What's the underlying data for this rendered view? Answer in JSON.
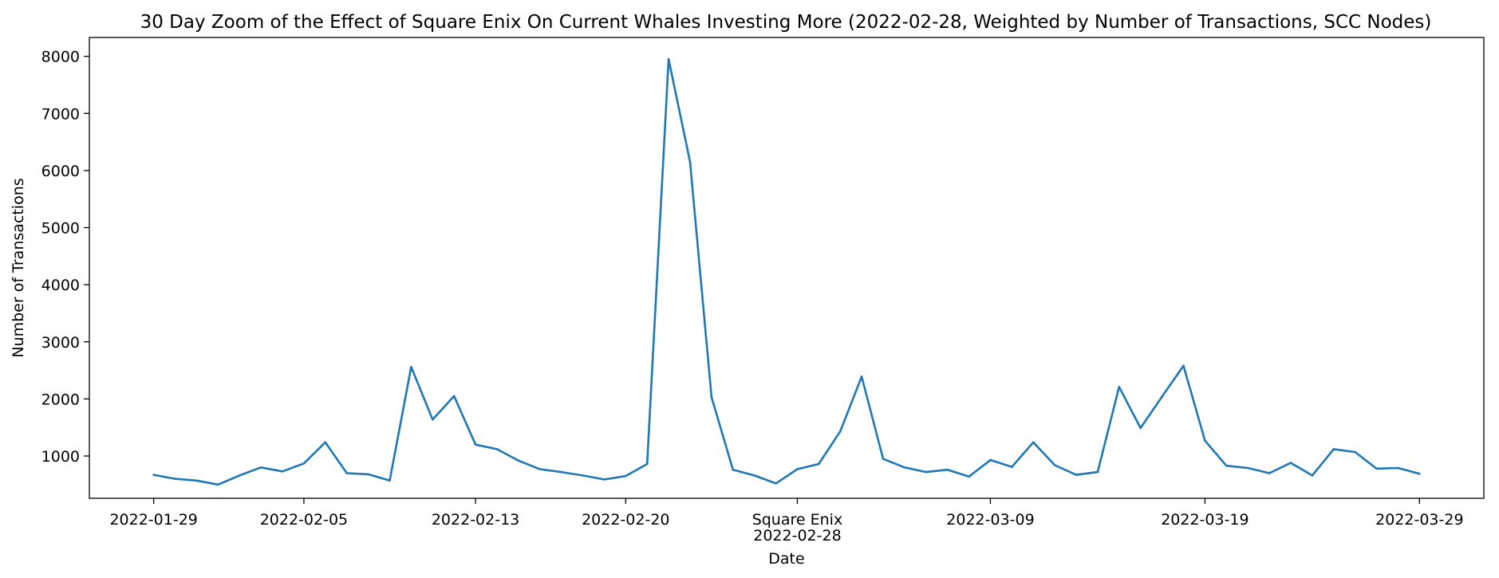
{
  "chart_data": {
    "type": "line",
    "title": "30 Day Zoom of the Effect of Square Enix On Current Whales Investing More (2022-02-28, Weighted by Number of Transactions, SCC Nodes)",
    "xlabel": "Date",
    "ylabel": "Number of Transactions",
    "xlim": [
      "2022-01-26",
      "2022-04-01"
    ],
    "ylim": [
      260,
      8330
    ],
    "yticks": [
      1000,
      2000,
      3000,
      4000,
      5000,
      6000,
      7000,
      8000
    ],
    "xticks": [
      {
        "date": "2022-01-29",
        "label": "2022-01-29"
      },
      {
        "date": "2022-02-05",
        "label": "2022-02-05"
      },
      {
        "date": "2022-02-13",
        "label": "2022-02-13"
      },
      {
        "date": "2022-02-20",
        "label": "2022-02-20"
      },
      {
        "date": "2022-02-28",
        "label": "2022-02-28"
      },
      {
        "date": "2022-03-09",
        "label": "2022-03-09"
      },
      {
        "date": "2022-03-19",
        "label": "2022-03-19"
      },
      {
        "date": "2022-03-29",
        "label": "2022-03-29"
      }
    ],
    "event": {
      "date": "2022-02-28",
      "label": "Square Enix"
    },
    "grid": false,
    "series": [
      {
        "color": "#1f77b4",
        "x": [
          "2022-01-29",
          "2022-01-30",
          "2022-01-31",
          "2022-02-01",
          "2022-02-02",
          "2022-02-03",
          "2022-02-04",
          "2022-02-05",
          "2022-02-06",
          "2022-02-07",
          "2022-02-08",
          "2022-02-09",
          "2022-02-10",
          "2022-02-11",
          "2022-02-12",
          "2022-02-13",
          "2022-02-14",
          "2022-02-15",
          "2022-02-16",
          "2022-02-17",
          "2022-02-18",
          "2022-02-19",
          "2022-02-20",
          "2022-02-21",
          "2022-02-22",
          "2022-02-23",
          "2022-02-24",
          "2022-02-25",
          "2022-02-26",
          "2022-02-27",
          "2022-02-28",
          "2022-03-01",
          "2022-03-02",
          "2022-03-03",
          "2022-03-04",
          "2022-03-05",
          "2022-03-06",
          "2022-03-07",
          "2022-03-08",
          "2022-03-09",
          "2022-03-10",
          "2022-03-11",
          "2022-03-12",
          "2022-03-13",
          "2022-03-14",
          "2022-03-15",
          "2022-03-16",
          "2022-03-17",
          "2022-03-18",
          "2022-03-19",
          "2022-03-20",
          "2022-03-21",
          "2022-03-22",
          "2022-03-23",
          "2022-03-24",
          "2022-03-25",
          "2022-03-26",
          "2022-03-27",
          "2022-03-28",
          "2022-03-29"
        ],
        "values": [
          670,
          600,
          570,
          500,
          660,
          800,
          730,
          870,
          1240,
          700,
          680,
          570,
          2560,
          1640,
          2050,
          1200,
          1120,
          920,
          770,
          720,
          660,
          590,
          650,
          860,
          7950,
          6150,
          2030,
          760,
          660,
          520,
          770,
          860,
          1430,
          2390,
          950,
          800,
          720,
          760,
          640,
          930,
          810,
          1240,
          840,
          670,
          720,
          2210,
          1490,
          2040,
          2580,
          1270,
          830,
          790,
          700,
          880,
          660,
          1120,
          1070,
          780,
          790,
          690
        ]
      }
    ]
  }
}
